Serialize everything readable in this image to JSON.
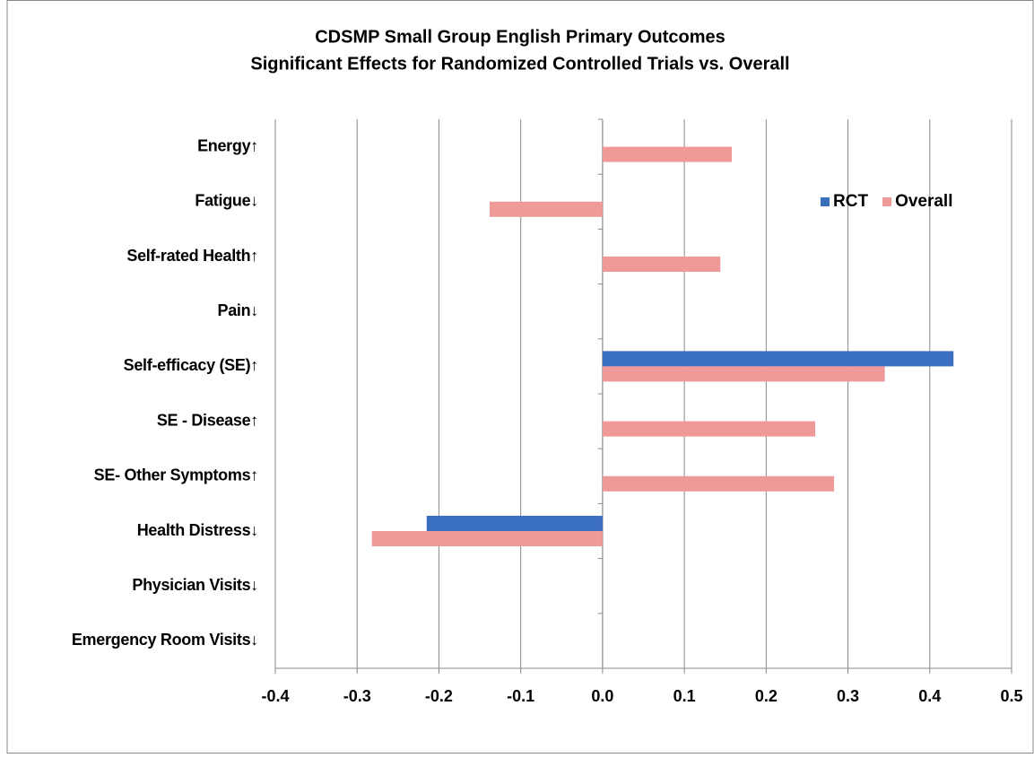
{
  "chart_data": {
    "type": "hbar",
    "title": "CDSMP Small Group English Primary Outcomes",
    "subtitle": "Significant Effects for Randomized Controlled Trials vs. Overall",
    "categories": [
      "Energy↑",
      "Fatigue↓",
      "Self-rated Health↑",
      "Pain↓",
      "Self-efficacy (SE)↑",
      "SE - Disease↑",
      "SE- Other Symptoms↑",
      "Health Distress↓",
      "Physician Visits↓",
      "Emergency Room Visits↓"
    ],
    "series": [
      {
        "name": "RCT",
        "color": "#3a6ebf",
        "values": [
          null,
          null,
          null,
          null,
          0.429,
          null,
          null,
          -0.215,
          null,
          null
        ]
      },
      {
        "name": "Overall",
        "color": "#f09999",
        "values": [
          0.158,
          -0.138,
          0.144,
          null,
          0.345,
          0.26,
          0.283,
          -0.282,
          null,
          null
        ]
      }
    ],
    "xlim": [
      -0.4,
      0.5
    ],
    "xticks": [
      -0.4,
      -0.3,
      -0.2,
      -0.1,
      {
        "value": 0,
        "label": "0.0"
      },
      0.1,
      0.2,
      0.3,
      0.4,
      0.5
    ],
    "grid": true,
    "legend": "top-right"
  }
}
